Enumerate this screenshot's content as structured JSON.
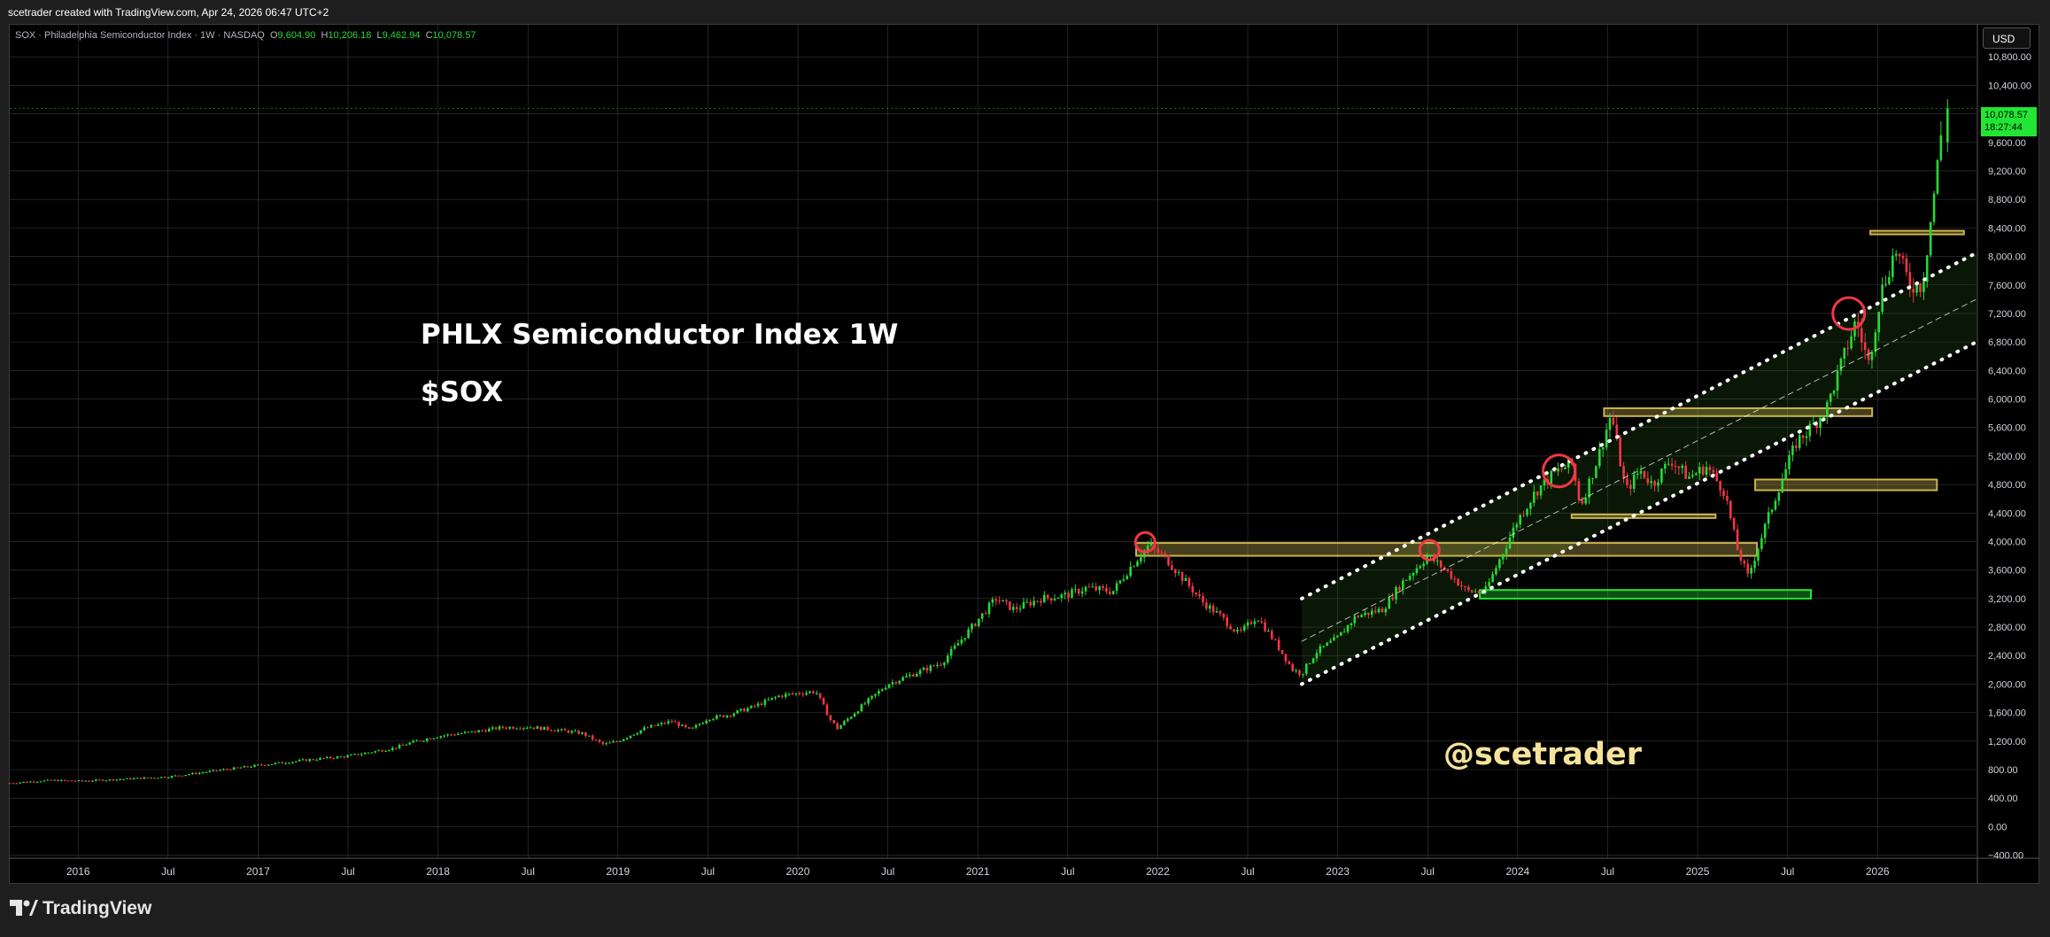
{
  "header": {
    "attribution": "scetrader created with TradingView.com, Apr 24, 2026 06:47 UTC+2"
  },
  "legend": {
    "symbol": "SOX · Philadelphia Semiconductor Index · 1W · NASDAQ",
    "o_label": "O",
    "o": "9,604.90",
    "h_label": "H",
    "h": "10,206.18",
    "l_label": "L",
    "l": "9,462.94",
    "c_label": "C",
    "c": "10,078.57"
  },
  "annotations": {
    "title": "PHLX Semiconductor Index 1W",
    "ticker": "$SOX",
    "watermark": "@scetrader"
  },
  "price_scale": {
    "currency": "USD",
    "last_price": "10,078.57",
    "countdown": "18:27:44"
  },
  "footer": {
    "brand": "TradingView"
  },
  "colors": {
    "up": "#26d935",
    "down": "#f23645",
    "grid": "#3a3a3a",
    "zone_yellow": "#c9b24f",
    "zone_green": "#22e633",
    "circle": "#f23645",
    "channel": "#ffffff"
  },
  "chart_data": {
    "type": "candlestick",
    "title": "SOX · Philadelphia Semiconductor Index · 1W · NASDAQ",
    "interval": "1W",
    "x_ticks": [
      "2016",
      "Jul",
      "2017",
      "Jul",
      "2018",
      "Jul",
      "2019",
      "Jul",
      "2020",
      "Jul",
      "2021",
      "Jul",
      "2022",
      "Jul",
      "2023",
      "Jul",
      "2024",
      "Jul",
      "2025",
      "Jul",
      "2026"
    ],
    "x_tick_dates": [
      2016.0,
      2016.5,
      2017.0,
      2017.5,
      2018.0,
      2018.5,
      2019.0,
      2019.5,
      2020.0,
      2020.5,
      2021.0,
      2021.5,
      2022.0,
      2022.5,
      2023.0,
      2023.5,
      2024.0,
      2024.5,
      2025.0,
      2025.5,
      2026.0
    ],
    "y_ticks": [
      -400,
      0,
      400,
      800,
      1200,
      1600,
      2000,
      2400,
      2800,
      3200,
      3600,
      4000,
      4400,
      4800,
      5200,
      5600,
      6000,
      6400,
      6800,
      7200,
      7600,
      8000,
      8400,
      8800,
      9200,
      9600,
      10000,
      10400,
      10800
    ],
    "y_tick_labels": [
      "−400.00",
      "0.00",
      "400.00",
      "800.00",
      "1,200.00",
      "1,600.00",
      "2,000.00",
      "2,400.00",
      "2,800.00",
      "3,200.00",
      "3,600.00",
      "4,000.00",
      "4,400.00",
      "4,800.00",
      "5,200.00",
      "5,600.00",
      "6,000.00",
      "6,400.00",
      "6,800.00",
      "7,200.00",
      "7,600.00",
      "8,000.00",
      "8,400.00",
      "8,800.00",
      "9,200.00",
      "9,600.00",
      "10,000.00",
      "10,400.00",
      "10,800.00"
    ],
    "x_range": [
      2015.62,
      2026.55
    ],
    "y_range": [
      -430,
      11250
    ],
    "price_path": [
      [
        2015.62,
        610
      ],
      [
        2015.85,
        650
      ],
      [
        2016.0,
        640
      ],
      [
        2016.2,
        660
      ],
      [
        2016.5,
        700
      ],
      [
        2016.75,
        780
      ],
      [
        2017.0,
        860
      ],
      [
        2017.25,
        930
      ],
      [
        2017.5,
        990
      ],
      [
        2017.75,
        1100
      ],
      [
        2017.85,
        1180
      ],
      [
        2018.0,
        1270
      ],
      [
        2018.2,
        1330
      ],
      [
        2018.35,
        1390
      ],
      [
        2018.5,
        1400
      ],
      [
        2018.65,
        1360
      ],
      [
        2018.8,
        1310
      ],
      [
        2018.92,
        1150
      ],
      [
        2019.0,
        1200
      ],
      [
        2019.15,
        1380
      ],
      [
        2019.3,
        1480
      ],
      [
        2019.4,
        1350
      ],
      [
        2019.5,
        1520
      ],
      [
        2019.6,
        1560
      ],
      [
        2019.75,
        1680
      ],
      [
        2019.9,
        1840
      ],
      [
        2020.1,
        1900
      ],
      [
        2020.18,
        1500
      ],
      [
        2020.22,
        1380
      ],
      [
        2020.35,
        1680
      ],
      [
        2020.5,
        2000
      ],
      [
        2020.65,
        2150
      ],
      [
        2020.8,
        2300
      ],
      [
        2020.95,
        2750
      ],
      [
        2021.1,
        3200
      ],
      [
        2021.2,
        3050
      ],
      [
        2021.35,
        3200
      ],
      [
        2021.5,
        3250
      ],
      [
        2021.6,
        3350
      ],
      [
        2021.75,
        3300
      ],
      [
        2021.85,
        3650
      ],
      [
        2021.95,
        3950
      ],
      [
        2022.05,
        3750
      ],
      [
        2022.15,
        3450
      ],
      [
        2022.25,
        3150
      ],
      [
        2022.35,
        2950
      ],
      [
        2022.45,
        2700
      ],
      [
        2022.55,
        2950
      ],
      [
        2022.65,
        2600
      ],
      [
        2022.75,
        2200
      ],
      [
        2022.8,
        2150
      ],
      [
        2022.88,
        2450
      ],
      [
        2023.0,
        2650
      ],
      [
        2023.1,
        2950
      ],
      [
        2023.25,
        3050
      ],
      [
        2023.35,
        3400
      ],
      [
        2023.5,
        3800
      ],
      [
        2023.6,
        3600
      ],
      [
        2023.72,
        3300
      ],
      [
        2023.82,
        3300
      ],
      [
        2023.9,
        3750
      ],
      [
        2024.0,
        4300
      ],
      [
        2024.1,
        4700
      ],
      [
        2024.2,
        4950
      ],
      [
        2024.3,
        5100
      ],
      [
        2024.35,
        4500
      ],
      [
        2024.45,
        5200
      ],
      [
        2024.52,
        5800
      ],
      [
        2024.6,
        4700
      ],
      [
        2024.68,
        5000
      ],
      [
        2024.75,
        4800
      ],
      [
        2024.85,
        5150
      ],
      [
        2024.95,
        4900
      ],
      [
        2025.05,
        5050
      ],
      [
        2025.15,
        4700
      ],
      [
        2025.22,
        3900
      ],
      [
        2025.28,
        3500
      ],
      [
        2025.36,
        4100
      ],
      [
        2025.45,
        4750
      ],
      [
        2025.55,
        5400
      ],
      [
        2025.65,
        5650
      ],
      [
        2025.72,
        5900
      ],
      [
        2025.8,
        6500
      ],
      [
        2025.88,
        7100
      ],
      [
        2025.95,
        6500
      ],
      [
        2026.02,
        7500
      ],
      [
        2026.1,
        8100
      ],
      [
        2026.18,
        7600
      ],
      [
        2026.25,
        7600
      ],
      [
        2026.32,
        9000
      ],
      [
        2026.37,
        10078
      ]
    ],
    "zones": [
      {
        "color": "yellow",
        "x1": 2021.88,
        "x2": 2025.33,
        "y_low": 3800,
        "y_high": 3980
      },
      {
        "color": "yellow",
        "x1": 2024.48,
        "x2": 2025.97,
        "y_low": 5760,
        "y_high": 5870
      },
      {
        "color": "yellow",
        "x1": 2024.3,
        "x2": 2025.1,
        "y_low": 4330,
        "y_high": 4380
      },
      {
        "color": "yellow",
        "x1": 2025.32,
        "x2": 2026.33,
        "y_low": 4720,
        "y_high": 4870
      },
      {
        "color": "yellow",
        "x1": 2025.96,
        "x2": 2026.48,
        "y_low": 8310,
        "y_high": 8360
      },
      {
        "color": "green",
        "x1": 2023.79,
        "x2": 2025.63,
        "y_low": 3200,
        "y_high": 3320
      }
    ],
    "circles": [
      [
        2021.93,
        3990
      ],
      [
        2023.51,
        3880
      ],
      [
        2024.23,
        4990
      ],
      [
        2025.84,
        7200
      ]
    ],
    "channel": {
      "x_start": 2022.8,
      "x_end": 2026.55,
      "upper": [
        3200,
        8050
      ],
      "middle": [
        2600,
        7400
      ],
      "lower": [
        2000,
        6800
      ]
    }
  }
}
